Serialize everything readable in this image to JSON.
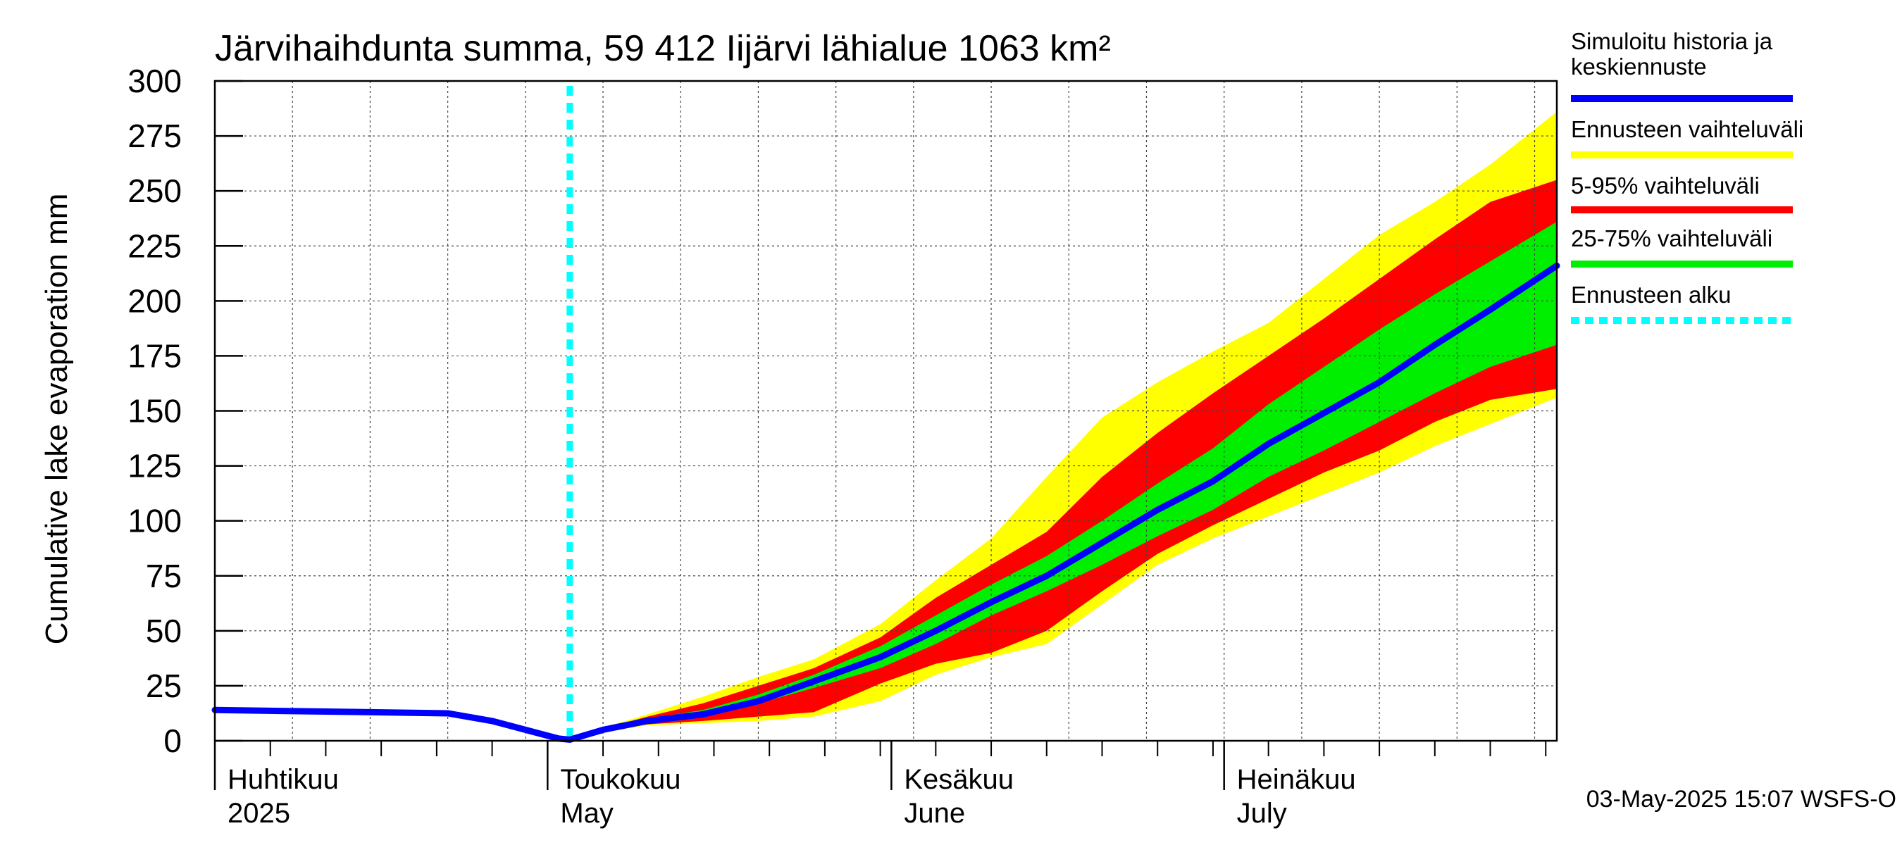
{
  "chart_data": {
    "type": "area",
    "title": "Järvihaihdunta summa, 59 412 Iijärvi lähialue 1063 km²",
    "ylabel": "Cumulative lake evaporation   mm",
    "xlabel": "",
    "x_range": [
      "2025-04-01",
      "2025-07-31"
    ],
    "ylim": [
      0,
      300
    ],
    "y_ticks": [
      0,
      25,
      50,
      75,
      100,
      125,
      150,
      175,
      200,
      225,
      250,
      275,
      300
    ],
    "grid": true,
    "legend_position": "right",
    "month_labels": [
      {
        "date": "2025-04-01",
        "fi": "Huhtikuu",
        "en": "2025"
      },
      {
        "date": "2025-05-01",
        "fi": "Toukokuu",
        "en": "May"
      },
      {
        "date": "2025-06-01",
        "fi": "Kesäkuu",
        "en": "June"
      },
      {
        "date": "2025-07-01",
        "fi": "Heinäkuu",
        "en": "July"
      }
    ],
    "forecast_start": "2025-05-03",
    "footer": "03-May-2025 15:07 WSFS-O",
    "colors": {
      "median": "#0000ff",
      "range": "#ffff00",
      "p5_95": "#ff0000",
      "p25_75": "#00ee00",
      "forecast_start": "#00ffff"
    },
    "legend": [
      {
        "key": "median",
        "label_lines": [
          "Simuloitu historia ja",
          "keskiennuste"
        ]
      },
      {
        "key": "range",
        "label_lines": [
          "Ennusteen vaihteluväli"
        ]
      },
      {
        "key": "p5_95",
        "label_lines": [
          "5-95% vaihteluväli"
        ]
      },
      {
        "key": "p25_75",
        "label_lines": [
          "25-75% vaihteluväli"
        ]
      },
      {
        "key": "forecast_start",
        "label_lines": [
          "Ennusteen alku"
        ]
      }
    ],
    "x_dates": [
      "2025-04-01",
      "2025-04-08",
      "2025-04-15",
      "2025-04-22",
      "2025-04-26",
      "2025-04-29",
      "2025-05-02",
      "2025-05-03",
      "2025-05-06",
      "2025-05-10",
      "2025-05-15",
      "2025-05-20",
      "2025-05-25",
      "2025-05-31",
      "2025-06-05",
      "2025-06-10",
      "2025-06-15",
      "2025-06-20",
      "2025-06-25",
      "2025-06-30",
      "2025-07-05",
      "2025-07-10",
      "2025-07-15",
      "2025-07-20",
      "2025-07-25",
      "2025-07-31"
    ],
    "series": [
      {
        "name": "Simuloitu historia ja keskiennuste",
        "key": "median",
        "values": [
          14,
          13.5,
          13,
          12.5,
          9,
          5,
          1,
          0.5,
          5,
          9,
          12,
          18,
          27,
          38,
          50,
          63,
          75,
          90,
          105,
          118,
          135,
          149,
          163,
          180,
          196,
          216
        ]
      },
      {
        "name": "Ennusteen vaihteluväli (min)",
        "key": "range_low",
        "values": [
          null,
          null,
          null,
          null,
          null,
          null,
          null,
          0.5,
          4,
          7,
          8,
          9,
          11,
          18,
          30,
          38,
          44,
          62,
          80,
          92,
          102,
          112,
          122,
          134,
          144,
          156
        ]
      },
      {
        "name": "Ennusteen vaihteluväli (max)",
        "key": "range_high",
        "values": [
          null,
          null,
          null,
          null,
          null,
          null,
          null,
          0.5,
          6,
          12,
          20,
          29,
          37,
          53,
          73,
          92,
          120,
          147,
          163,
          177,
          190,
          210,
          230,
          245,
          262,
          286
        ]
      },
      {
        "name": "5% ",
        "key": "p5",
        "values": [
          null,
          null,
          null,
          null,
          null,
          null,
          null,
          0.5,
          4.5,
          7.5,
          9,
          11,
          13,
          26,
          35,
          40,
          50,
          68,
          85,
          98,
          110,
          122,
          132,
          145,
          155,
          160
        ]
      },
      {
        "name": "95%",
        "key": "p95",
        "values": [
          null,
          null,
          null,
          null,
          null,
          null,
          null,
          0.5,
          5.5,
          11,
          17,
          25,
          33,
          47,
          65,
          80,
          95,
          120,
          140,
          158,
          175,
          192,
          210,
          228,
          245,
          255
        ]
      },
      {
        "name": "25%",
        "key": "p25",
        "values": [
          null,
          null,
          null,
          null,
          null,
          null,
          null,
          0.5,
          5,
          9,
          11,
          17,
          24,
          33,
          44,
          57,
          68,
          80,
          93,
          105,
          120,
          132,
          145,
          158,
          170,
          180
        ]
      },
      {
        "name": "75%",
        "key": "p75",
        "values": [
          null,
          null,
          null,
          null,
          null,
          null,
          null,
          0.5,
          5,
          10,
          14,
          21,
          30,
          43,
          57,
          71,
          84,
          100,
          117,
          133,
          153,
          170,
          187,
          203,
          218,
          236
        ]
      }
    ]
  }
}
